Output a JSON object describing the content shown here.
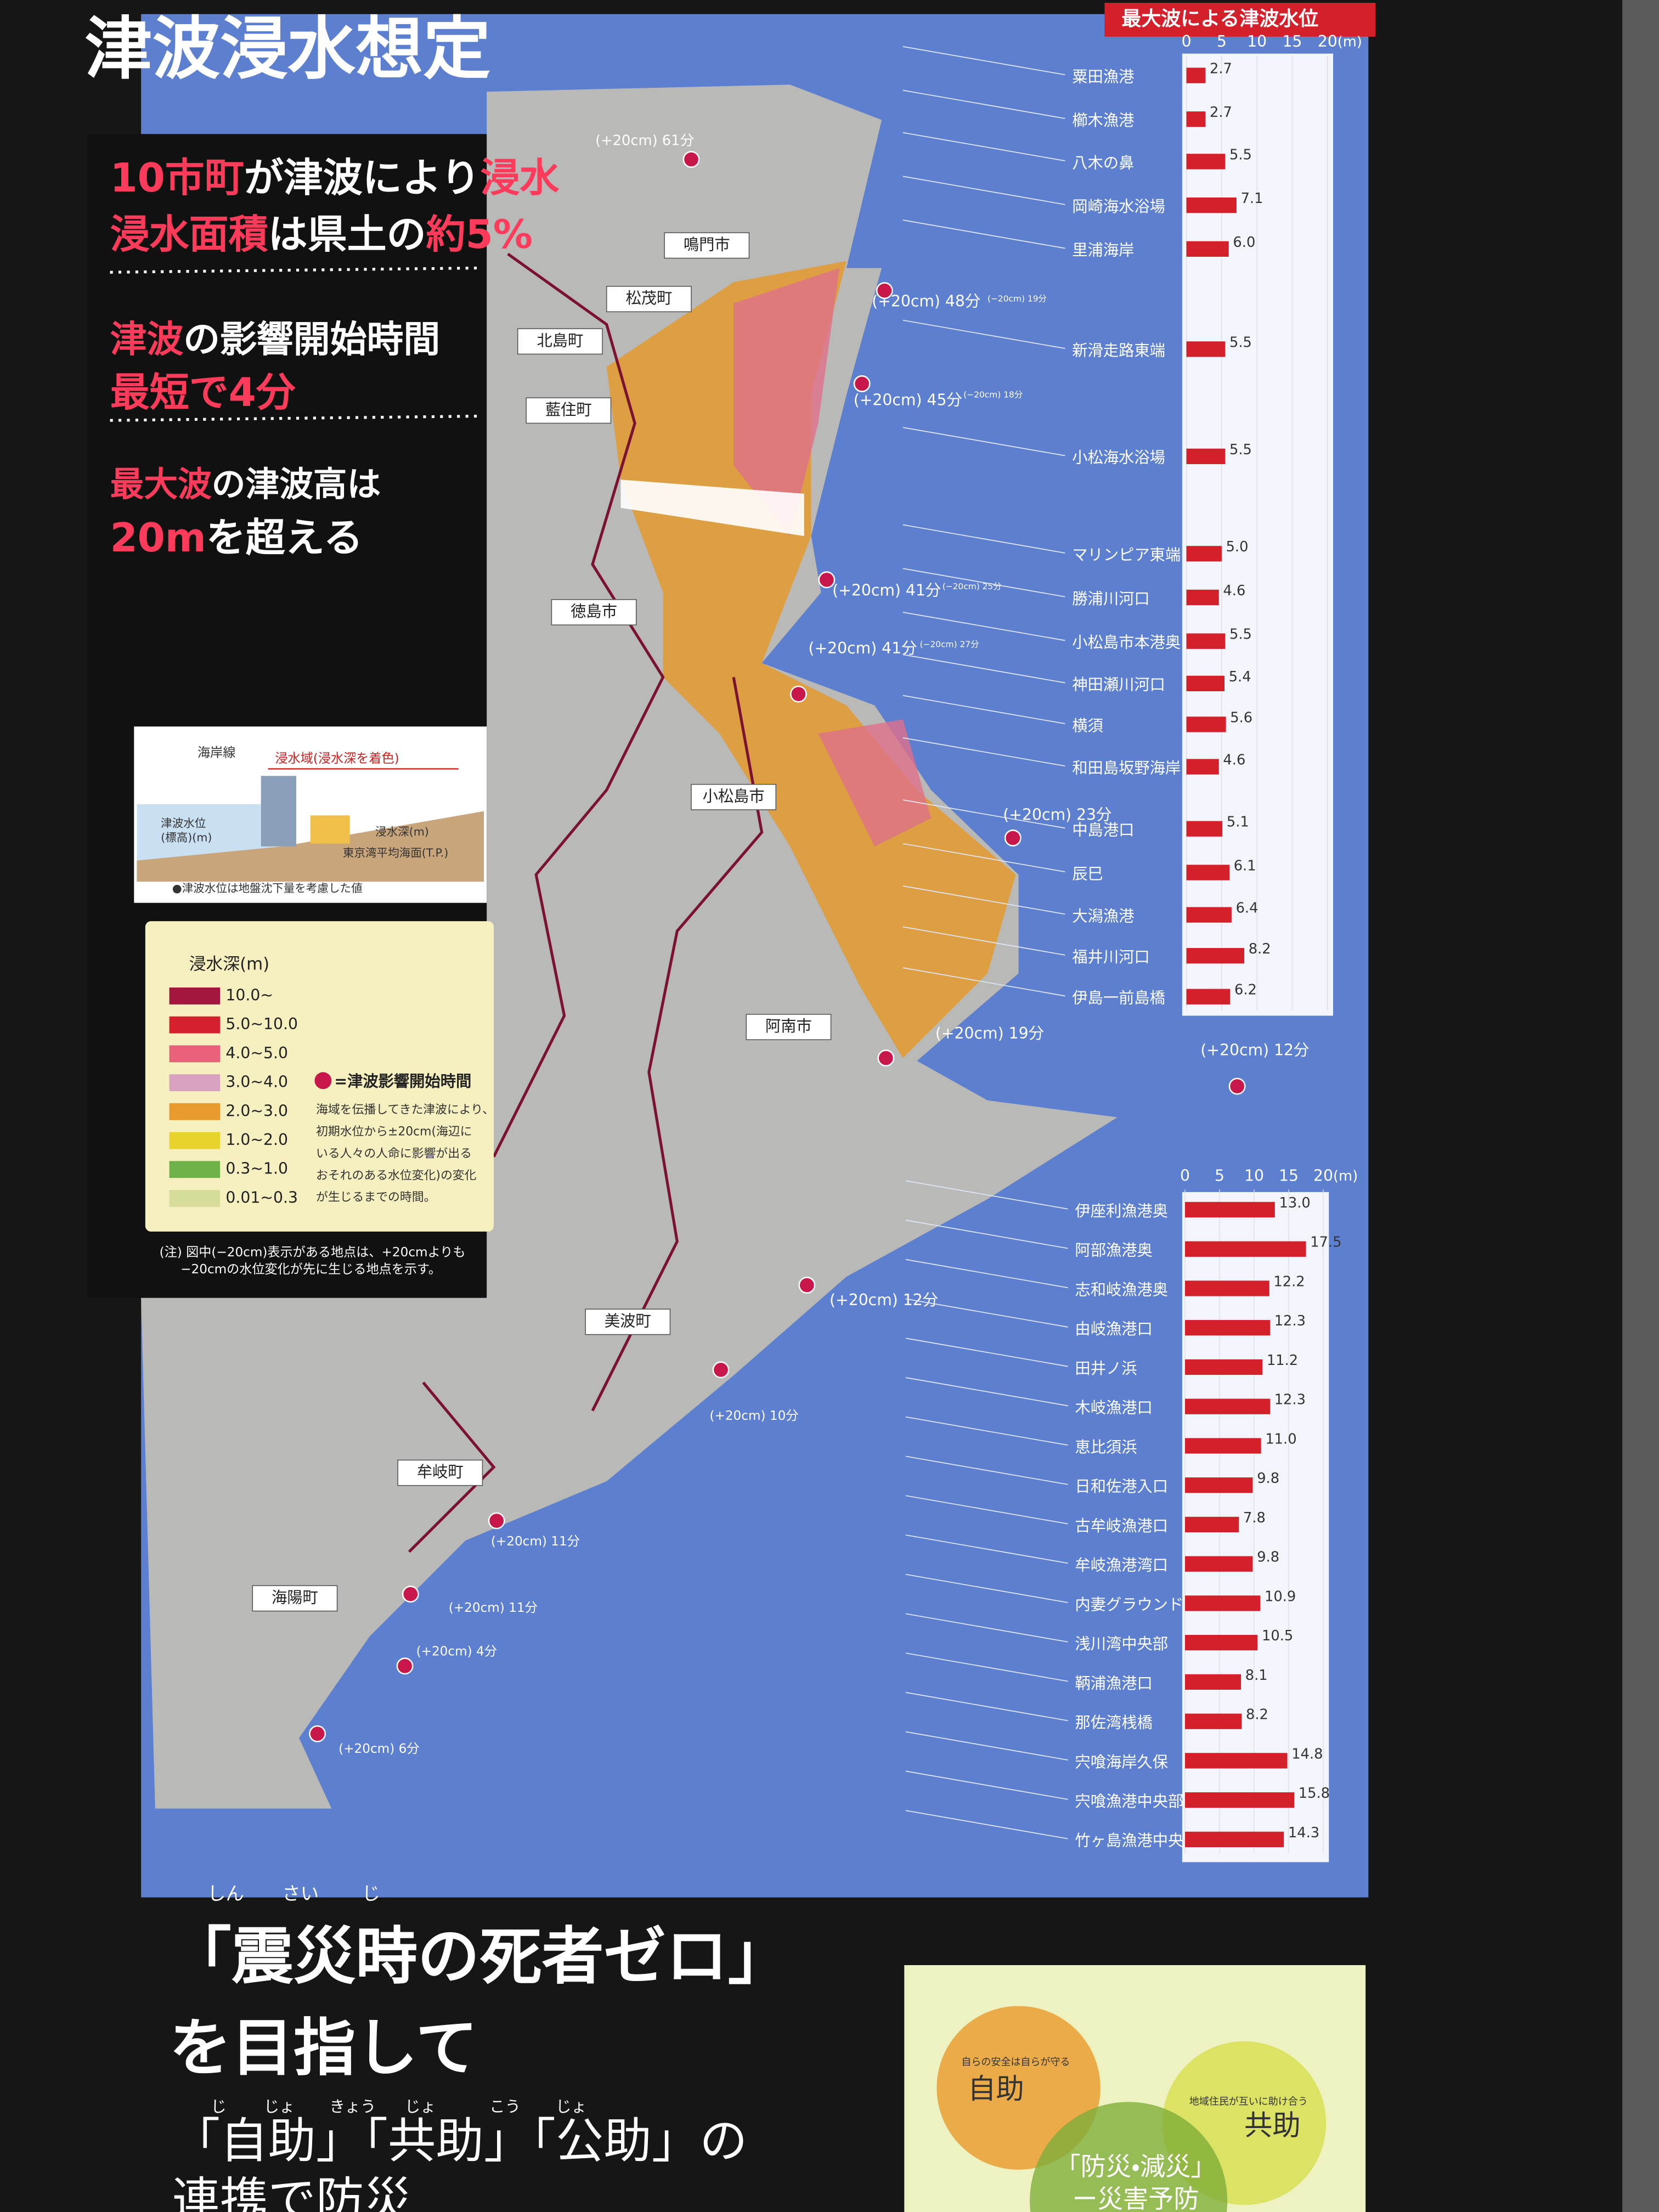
{
  "title": "津波浸水想定",
  "highlights": [
    [
      {
        "text": "10市町",
        "em": true
      },
      {
        "text": "が津波により"
      },
      {
        "text": "浸水",
        "em": true
      }
    ],
    [
      {
        "text": "浸水面積",
        "em": true
      },
      {
        "text": "は県土の"
      },
      {
        "text": "約5%",
        "em": true
      }
    ],
    [
      {
        "text": "津波",
        "em": true
      },
      {
        "text": "の影響開始時間"
      }
    ],
    [
      {
        "text": "最短で4分",
        "em": true
      }
    ],
    [
      {
        "text": "最大波",
        "em": true
      },
      {
        "text": "の津波高は"
      }
    ],
    [
      {
        "text": "20m",
        "em": true
      },
      {
        "text": "を超える"
      }
    ]
  ],
  "map": {
    "places": [
      "鳴門市",
      "松茂町",
      "北島町",
      "藍住町",
      "徳島市",
      "小松島市",
      "阿南市",
      "美波町",
      "牟岐町",
      "海陽町"
    ],
    "arrival_times": [
      "(+20cm) 61分",
      "(+20cm) 48分",
      "(−20cm) 19分",
      "(+20cm) 45分",
      "(−20cm) 18分",
      "(+20cm) 41分",
      "(−20cm) 25分",
      "(+20cm) 41分",
      "(−20cm) 27分",
      "(+20cm) 23分",
      "(+20cm) 19分",
      "(+20cm) 12分",
      "(+20cm) 12分",
      "(+20cm) 10分",
      "(+20cm) 11分",
      "(+20cm) 11分",
      "(+20cm) 4分",
      "(+20cm) 6分"
    ]
  },
  "diagram": {
    "coastline": "海岸線",
    "inundation_area": "浸水域(浸水深を着色)",
    "water_level": [
      "津波水位",
      "(標高)(m)"
    ],
    "depth": "浸水深(m)",
    "datum": "東京湾平均海面(T.P.)",
    "note": "●津波水位は地盤沈下量を考慮した値"
  },
  "legend": {
    "title": "浸水深(m)",
    "items": [
      {
        "label": "10.0~",
        "color": "#a3173f"
      },
      {
        "label": "5.0~10.0",
        "color": "#d6202e"
      },
      {
        "label": "4.0~5.0",
        "color": "#e8607a"
      },
      {
        "label": "3.0~4.0",
        "color": "#d9a2c0"
      },
      {
        "label": "2.0~3.0",
        "color": "#e89a2c"
      },
      {
        "label": "1.0~2.0",
        "color": "#e8d22c"
      },
      {
        "label": "0.3~1.0",
        "color": "#6fb24a"
      },
      {
        "label": "0.01~0.3",
        "color": "#d6dc9a"
      }
    ],
    "marker": "=津波影響開始時間",
    "description": [
      "海域を伝播してきた津波により、",
      "初期水位から±20cm(海辺に",
      "いる人々の人命に影響が出る",
      "おそれのある水位変化)の変化",
      "が生じるまでの時間。"
    ]
  },
  "note": [
    "(注) 図中(−20cm)表示がある地点は、+20cmよりも",
    "−20cmの水位変化が先に生じる地点を示す。"
  ],
  "chart_data": [
    {
      "type": "bar",
      "orientation": "horizontal",
      "title": "最大波による津波水位",
      "xlabel": "(m)",
      "xlim": [
        0,
        20
      ],
      "xticks": [
        0,
        5,
        10,
        15,
        20
      ],
      "color": "#d3202b",
      "categories": [
        "粟田漁港",
        "櫛木漁港",
        "八木の鼻",
        "岡崎海水浴場",
        "里浦海岸",
        "新滑走路東端",
        "小松海水浴場",
        "マリンピア東端",
        "勝浦川河口",
        "小松島市本港奥",
        "神田瀬川河口",
        "横須",
        "和田島坂野海岸",
        "中島港口",
        "辰巳",
        "大潟漁港",
        "福井川河口",
        "伊島一前島橋"
      ],
      "values": [
        2.7,
        2.7,
        5.5,
        7.1,
        6.0,
        5.5,
        5.5,
        5.0,
        4.6,
        5.5,
        5.4,
        5.6,
        4.6,
        5.1,
        6.1,
        6.4,
        8.2,
        6.2
      ],
      "value_labels": [
        "2.7",
        "2.7",
        "5.5",
        "7.1",
        "6.0",
        "5.5",
        "5.5",
        "5.0",
        "4.6",
        "5.5",
        "5.4",
        "5.6",
        "4.6",
        "5.1",
        "6.1",
        "6.4",
        "8.2",
        "6.2"
      ]
    },
    {
      "type": "bar",
      "orientation": "horizontal",
      "xlabel": "(m)",
      "xlim": [
        0,
        20
      ],
      "xticks": [
        0,
        5,
        10,
        15,
        20
      ],
      "color": "#d3202b",
      "categories": [
        "伊座利漁港奥",
        "阿部漁港奥",
        "志和岐漁港奥",
        "由岐漁港口",
        "田井ノ浜",
        "木岐漁港口",
        "恵比須浜",
        "日和佐港入口",
        "古牟岐漁港口",
        "牟岐漁港湾口",
        "内妻グラウンド",
        "浅川湾中央部",
        "鞆浦漁港口",
        "那佐湾桟橋",
        "宍喰海岸久保",
        "宍喰漁港中央部",
        "竹ヶ島漁港中央"
      ],
      "values": [
        13.0,
        17.5,
        12.2,
        12.3,
        11.2,
        12.3,
        11.0,
        9.8,
        7.8,
        9.8,
        10.9,
        10.5,
        8.1,
        8.2,
        14.8,
        15.8,
        14.3
      ],
      "value_labels": [
        "13.0",
        "17.5",
        "12.2",
        "12.3",
        "11.2",
        "12.3",
        "11.0",
        "9.8",
        "7.8",
        "9.8",
        "10.9",
        "10.5",
        "8.1",
        "8.2",
        "14.8",
        "15.8",
        "14.3"
      ]
    }
  ],
  "slogan": {
    "ruby1": [
      "しん",
      "さい",
      "じ"
    ],
    "line1": "「震災時の死者ゼロ」",
    "line2": "を目指して",
    "ruby2": [
      "じ",
      "じょ",
      "きょう",
      "じょ",
      "こう",
      "じょ"
    ],
    "line3": "「自助」「共助」「公助」の",
    "line4": "連携で防災"
  },
  "venn": {
    "self_note": "自らの安全は自らが守る",
    "self": "自助",
    "mutual_note": "地域住民が互いに助け合う",
    "mutual": "共助",
    "center": [
      "「防災・減災」",
      "ー災害予防"
    ]
  }
}
